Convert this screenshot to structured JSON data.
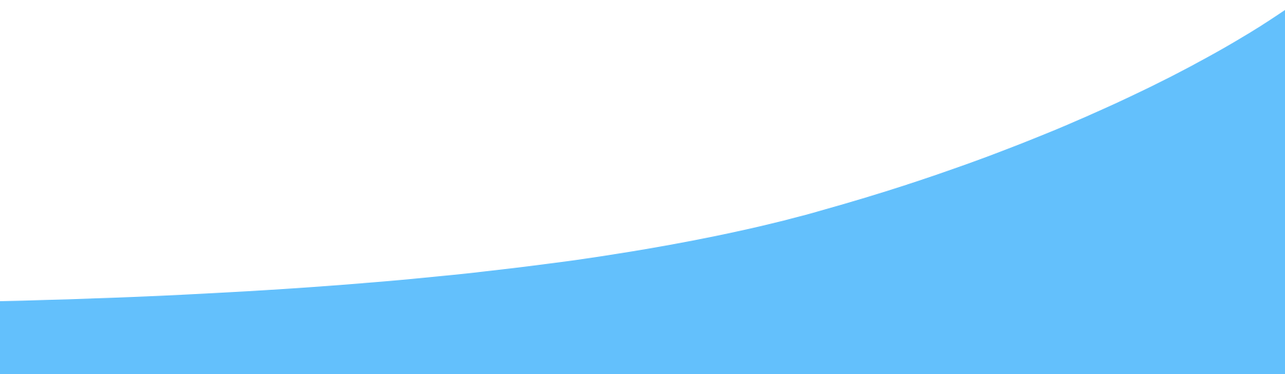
{
  "colors": {
    "background": "#ffffff",
    "wave_fill": "#63c0fc"
  }
}
